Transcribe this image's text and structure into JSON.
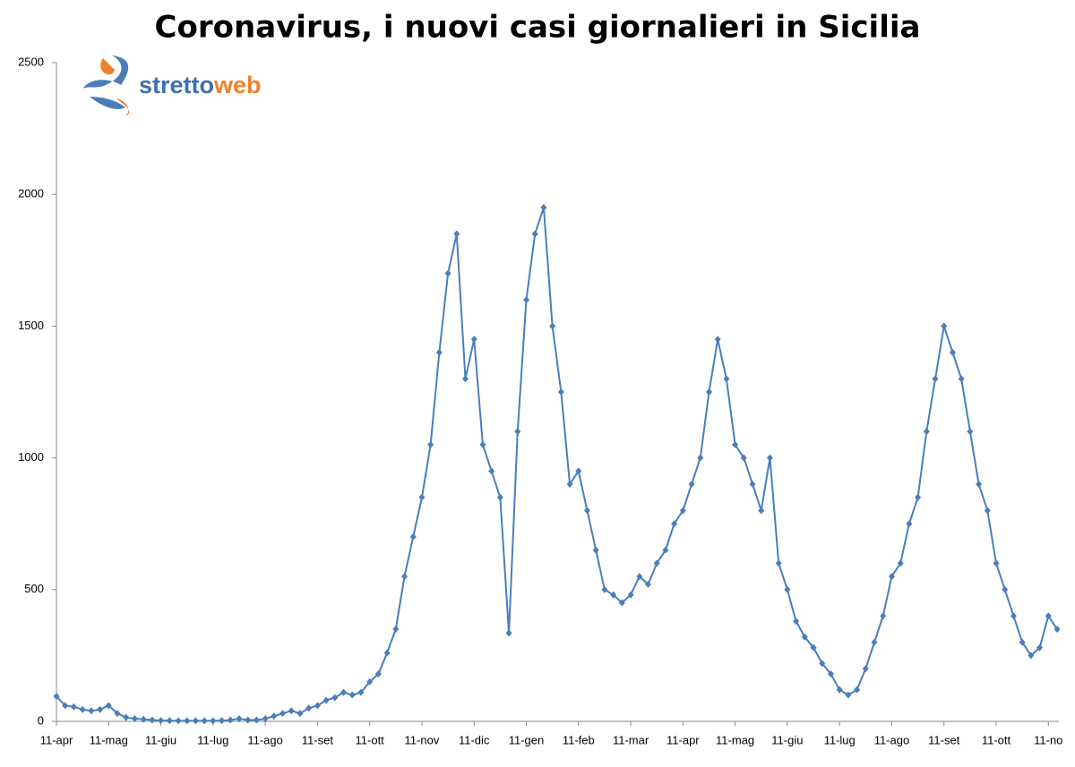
{
  "chart_data": {
    "type": "line",
    "title": "Coronavirus, i nuovi casi giornalieri in Sicilia",
    "logo": {
      "part1": "stretto",
      "part2": "web"
    },
    "categories": [
      "11-apr",
      null,
      null,
      null,
      null,
      null,
      "11-mag",
      null,
      null,
      null,
      null,
      null,
      "11-giu",
      null,
      null,
      null,
      null,
      null,
      "11-lug",
      null,
      null,
      null,
      null,
      null,
      "11-ago",
      null,
      null,
      null,
      null,
      null,
      "11-set",
      null,
      null,
      null,
      null,
      null,
      "11-ott",
      null,
      null,
      null,
      null,
      null,
      "11-nov",
      null,
      null,
      null,
      null,
      null,
      "11-dic",
      null,
      null,
      null,
      null,
      null,
      "11-gen",
      null,
      null,
      null,
      null,
      null,
      "11-feb",
      null,
      null,
      null,
      null,
      null,
      "11-mar",
      null,
      null,
      null,
      null,
      null,
      "11-apr",
      null,
      null,
      null,
      null,
      null,
      "11-mag",
      null,
      null,
      null,
      null,
      null,
      "11-giu",
      null,
      null,
      null,
      null,
      null,
      "11-lug",
      null,
      null,
      null,
      null,
      null,
      "11-ago",
      null,
      null,
      null,
      null,
      null,
      "11-set",
      null,
      null,
      null,
      null,
      null,
      "11-ott",
      null,
      null,
      null,
      null,
      null,
      "11-no",
      null
    ],
    "series": [
      {
        "name": "nuovi casi",
        "color": "#4a7ebb",
        "values": [
          95,
          60,
          55,
          45,
          40,
          45,
          60,
          30,
          15,
          10,
          8,
          5,
          3,
          3,
          2,
          2,
          2,
          2,
          2,
          3,
          5,
          10,
          5,
          5,
          10,
          20,
          30,
          40,
          30,
          50,
          60,
          80,
          90,
          110,
          100,
          110,
          150,
          180,
          260,
          350,
          550,
          700,
          850,
          1050,
          1400,
          1700,
          1850,
          1300,
          1450,
          1050,
          950,
          850,
          335,
          1100,
          1600,
          1850,
          1950,
          1500,
          1250,
          900,
          950,
          800,
          650,
          500,
          480,
          450,
          480,
          550,
          520,
          600,
          650,
          750,
          800,
          900,
          1000,
          1250,
          1450,
          1300,
          1050,
          1000,
          900,
          800,
          1000,
          600,
          500,
          380,
          320,
          280,
          220,
          180,
          120,
          100,
          120,
          200,
          300,
          400,
          550,
          600,
          750,
          850,
          1100,
          1300,
          1500,
          1400,
          1300,
          1100,
          900,
          800,
          600,
          500,
          400,
          300,
          250,
          280,
          400,
          350
        ]
      }
    ],
    "ylim": [
      0,
      2500
    ],
    "yticks": [
      0,
      500,
      1000,
      1500,
      2000,
      2500
    ]
  }
}
